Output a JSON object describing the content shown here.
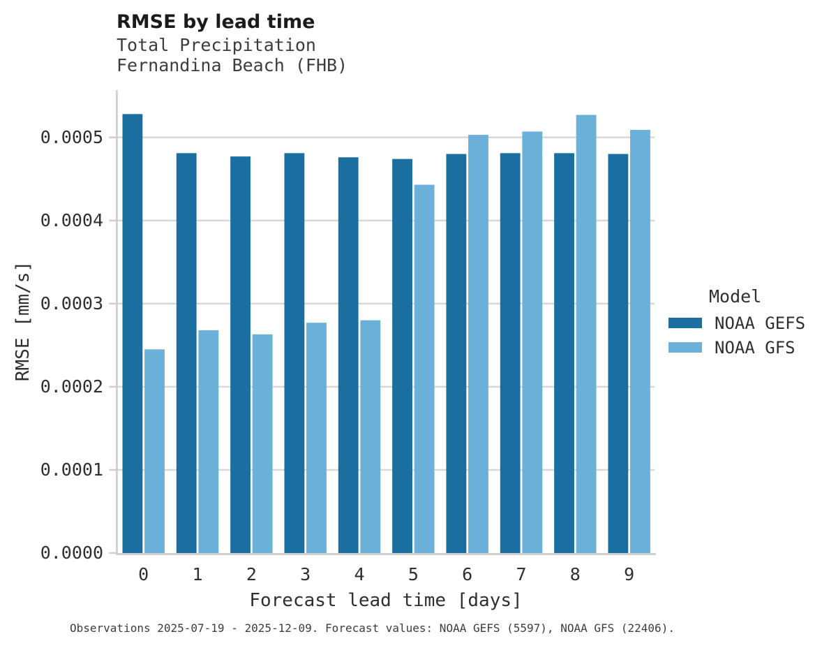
{
  "chart_data": {
    "type": "bar",
    "title": "RMSE by lead time",
    "subtitle": [
      "Total Precipitation",
      "Fernandina Beach (FHB)"
    ],
    "xlabel": "Forecast lead time [days]",
    "ylabel": "RMSE [mm/s]",
    "legend_title": "Model",
    "legend_position": "right",
    "grid": true,
    "categories": [
      "0",
      "1",
      "2",
      "3",
      "4",
      "5",
      "6",
      "7",
      "8",
      "9"
    ],
    "series": [
      {
        "name": "NOAA GEFS",
        "color": "#1A6FA0",
        "values": [
          0.000528,
          0.000481,
          0.000477,
          0.000481,
          0.000476,
          0.000474,
          0.00048,
          0.000481,
          0.000481,
          0.00048
        ]
      },
      {
        "name": "NOAA GFS",
        "color": "#6BB0D8",
        "values": [
          0.000245,
          0.000268,
          0.000263,
          0.000277,
          0.00028,
          0.000443,
          0.000503,
          0.000507,
          0.000527,
          0.000509
        ]
      }
    ],
    "ylim": [
      0,
      0.000557
    ],
    "yticks": {
      "values": [
        0,
        0.0001,
        0.0002,
        0.0003,
        0.0004,
        0.0005
      ],
      "labels": [
        "0.0000",
        "0.0001",
        "0.0002",
        "0.0003",
        "0.0004",
        "0.0005"
      ]
    },
    "footer": "Observations 2025-07-19 - 2025-12-09. Forecast values: NOAA GEFS (5597), NOAA GFS (22406)."
  },
  "colors": {
    "gridline": "#D8D8D8",
    "spine": "#CFCFCF",
    "background": "#FFFFFF"
  }
}
